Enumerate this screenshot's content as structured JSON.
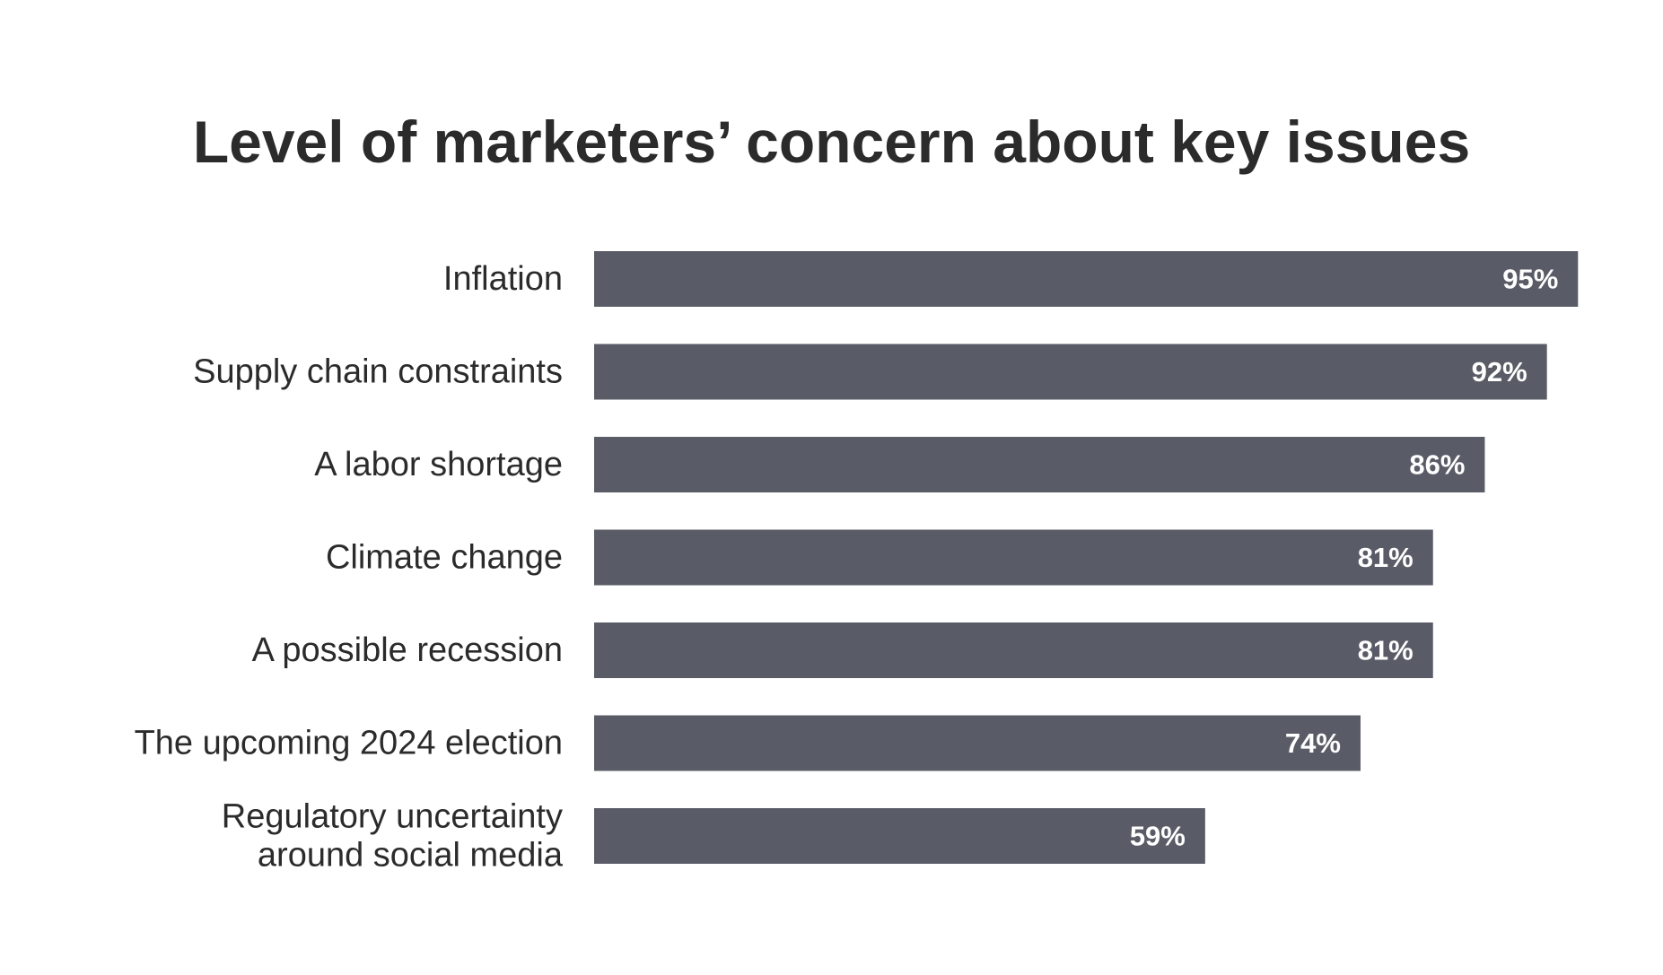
{
  "chart_data": {
    "type": "bar",
    "orientation": "horizontal",
    "title": "Level of marketers’ concern about key issues",
    "categories": [
      [
        "Inflation"
      ],
      [
        "Supply chain constraints"
      ],
      [
        "A labor shortage"
      ],
      [
        "Climate change"
      ],
      [
        "A possible recession"
      ],
      [
        "The upcoming 2024 election"
      ],
      [
        "Regulatory uncertainty",
        "around social media"
      ]
    ],
    "values": [
      95,
      92,
      86,
      81,
      81,
      74,
      59
    ],
    "value_labels": [
      "95%",
      "92%",
      "86%",
      "81%",
      "81%",
      "74%",
      "59%"
    ],
    "xlim": [
      0,
      100
    ],
    "grid": false,
    "legend": "none",
    "bar_color": "#595c66",
    "value_label_color": "#ffffff",
    "text_color": "#2b2b2b"
  }
}
